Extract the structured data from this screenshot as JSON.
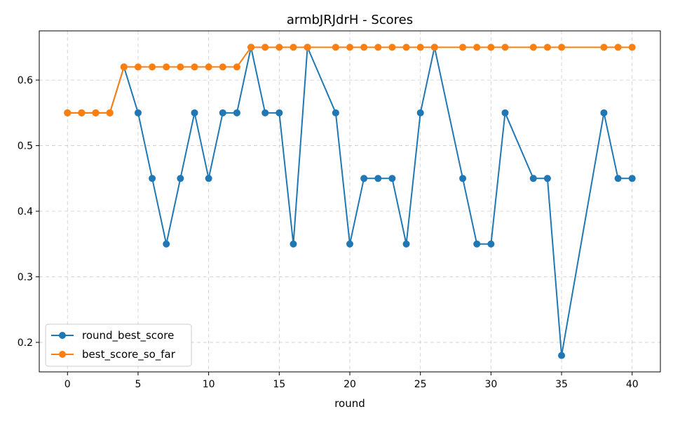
{
  "chart_data": {
    "type": "line",
    "title": "armbJRJdrH - Scores",
    "xlabel": "round",
    "ylabel": "",
    "xlim": [
      -2,
      42
    ],
    "ylim": [
      0.155,
      0.675
    ],
    "xticks": [
      0,
      5,
      10,
      15,
      20,
      25,
      30,
      35,
      40
    ],
    "xtick_labels": [
      "0",
      "5",
      "10",
      "15",
      "20",
      "25",
      "30",
      "35",
      "40"
    ],
    "yticks": [
      0.2,
      0.3,
      0.4,
      0.5,
      0.6
    ],
    "ytick_labels": [
      "0.2",
      "0.3",
      "0.4",
      "0.5",
      "0.6"
    ],
    "grid": true,
    "legend_position": "lower-left",
    "series": [
      {
        "name": "round_best_score",
        "color": "#1f77b4",
        "marker": "circle",
        "x": [
          0,
          1,
          2,
          3,
          4,
          5,
          6,
          7,
          8,
          9,
          10,
          11,
          12,
          13,
          14,
          15,
          16,
          17,
          19,
          20,
          21,
          22,
          23,
          24,
          25,
          26,
          28,
          29,
          30,
          31,
          33,
          34,
          35,
          38,
          39,
          40
        ],
        "y": [
          0.55,
          0.55,
          0.55,
          0.55,
          0.62,
          0.55,
          0.45,
          0.35,
          0.45,
          0.55,
          0.45,
          0.55,
          0.55,
          0.65,
          0.55,
          0.55,
          0.35,
          0.65,
          0.55,
          0.35,
          0.45,
          0.45,
          0.45,
          0.35,
          0.55,
          0.65,
          0.45,
          0.35,
          0.35,
          0.55,
          0.45,
          0.45,
          0.18,
          0.55,
          0.45,
          0.45
        ]
      },
      {
        "name": "best_score_so_far",
        "color": "#ff7f0e",
        "marker": "circle",
        "x": [
          0,
          1,
          2,
          3,
          4,
          5,
          6,
          7,
          8,
          9,
          10,
          11,
          12,
          13,
          14,
          15,
          16,
          17,
          19,
          20,
          21,
          22,
          23,
          24,
          25,
          26,
          28,
          29,
          30,
          31,
          33,
          34,
          35,
          38,
          39,
          40
        ],
        "y": [
          0.55,
          0.55,
          0.55,
          0.55,
          0.62,
          0.62,
          0.62,
          0.62,
          0.62,
          0.62,
          0.62,
          0.62,
          0.62,
          0.65,
          0.65,
          0.65,
          0.65,
          0.65,
          0.65,
          0.65,
          0.65,
          0.65,
          0.65,
          0.65,
          0.65,
          0.65,
          0.65,
          0.65,
          0.65,
          0.65,
          0.65,
          0.65,
          0.65,
          0.65,
          0.65,
          0.65
        ]
      }
    ]
  }
}
